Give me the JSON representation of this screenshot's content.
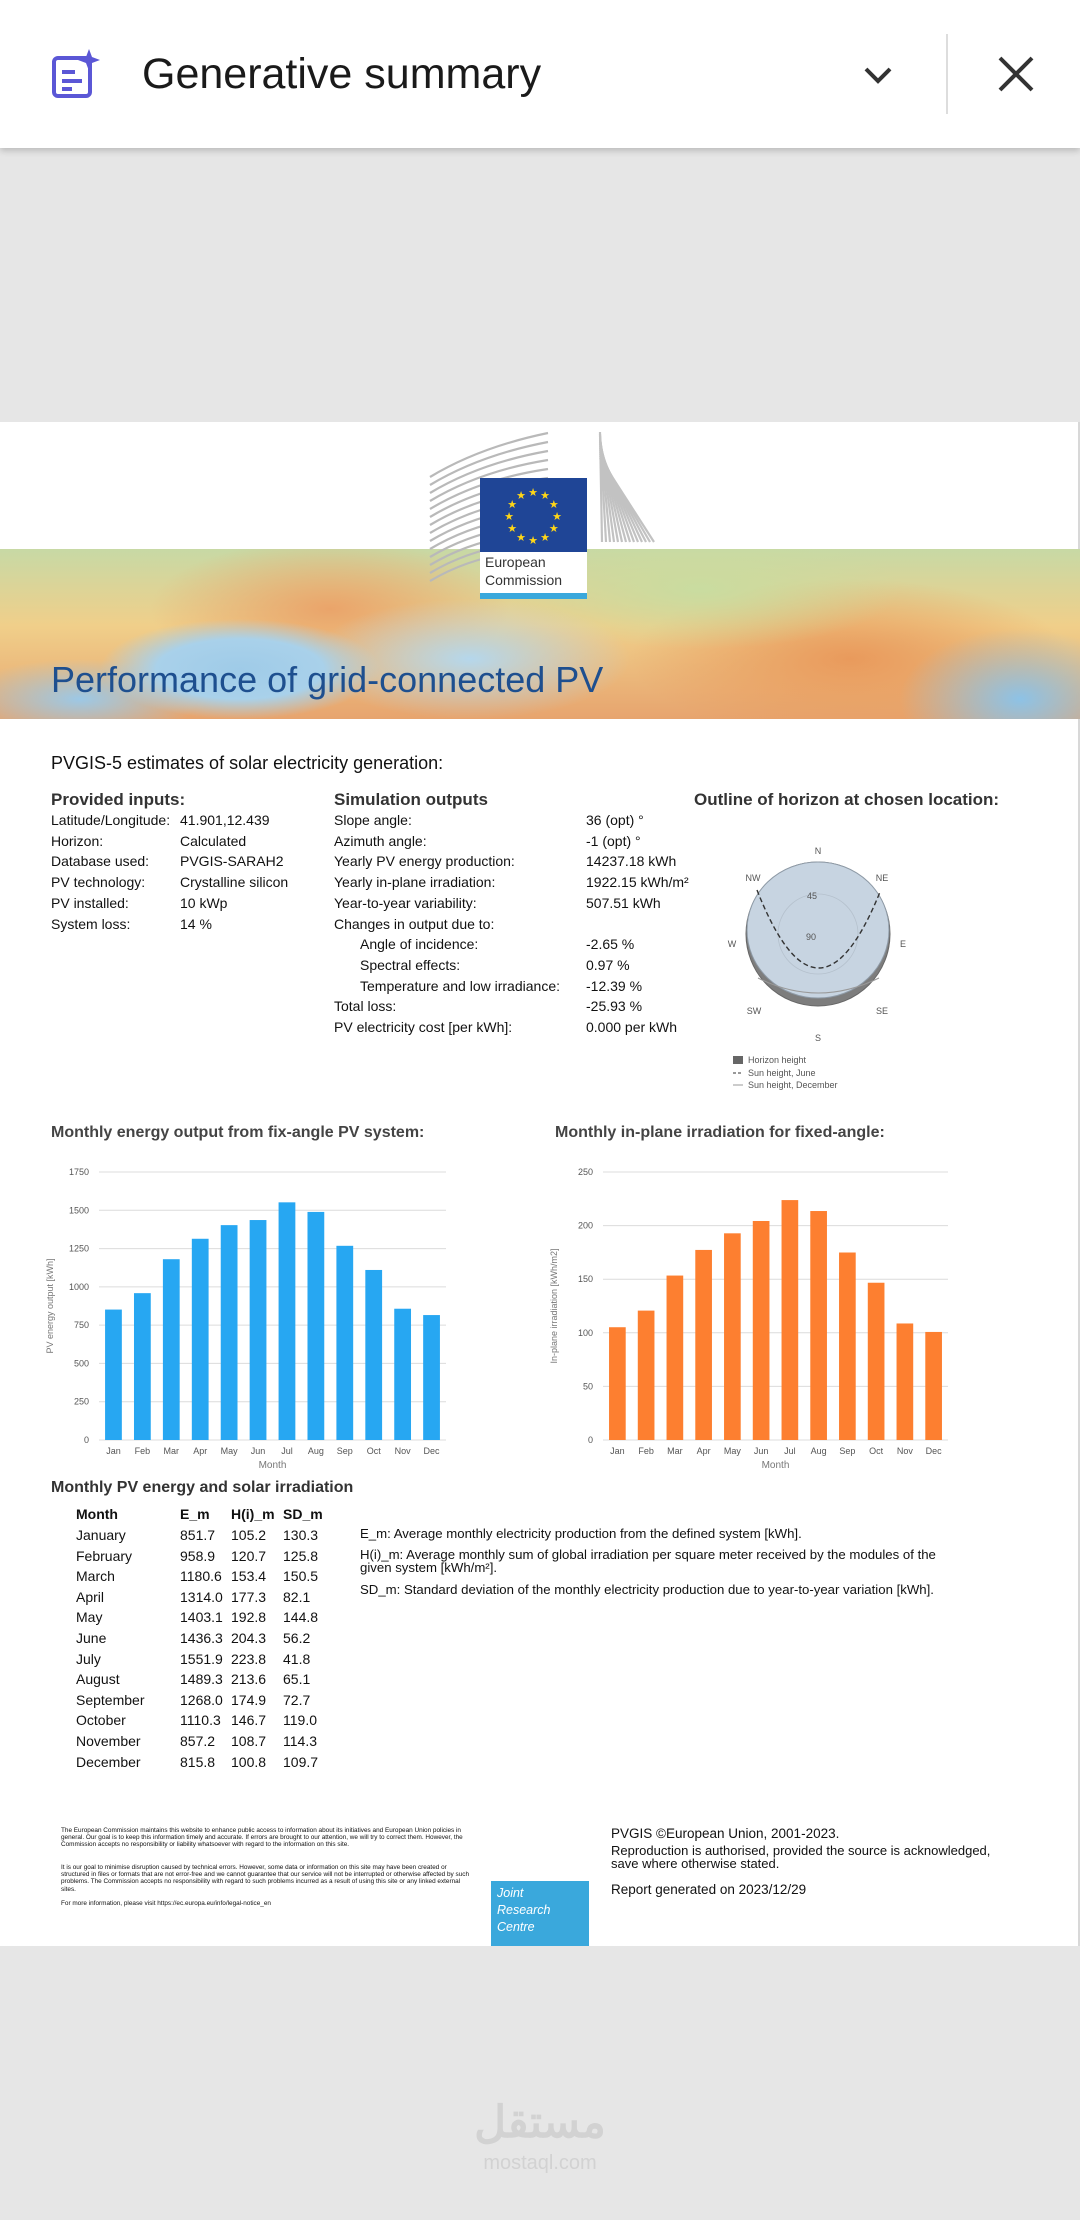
{
  "app_bar": {
    "title": "Generative summary"
  },
  "report": {
    "logo": {
      "line1": "European",
      "line2": "Commission"
    },
    "title": "Performance of grid-connected PV",
    "subtitle": "PVGIS-5 estimates of solar electricity generation:",
    "inputs": {
      "heading": "Provided inputs:",
      "rows": [
        [
          "Latitude/Longitude:",
          "41.901,12.439"
        ],
        [
          "Horizon:",
          "Calculated"
        ],
        [
          "Database used:",
          "PVGIS-SARAH2"
        ],
        [
          "PV technology:",
          "Crystalline silicon"
        ],
        [
          "PV installed:",
          "10 kWp"
        ],
        [
          "System loss:",
          "14 %"
        ]
      ]
    },
    "outputs": {
      "heading": "Simulation outputs",
      "rows": [
        [
          "Slope angle:",
          "36 (opt) °"
        ],
        [
          "Azimuth angle:",
          "-1 (opt) °"
        ],
        [
          "Yearly PV energy production:",
          "14237.18 kWh"
        ],
        [
          "Yearly in-plane irradiation:",
          "1922.15 kWh/m²"
        ],
        [
          "Year-to-year variability:",
          "507.51 kWh"
        ]
      ],
      "changes_heading": "Changes in output due to:",
      "changes_rows": [
        [
          "Angle of incidence:",
          "-2.65 %"
        ],
        [
          "Spectral effects:",
          "0.97 %"
        ],
        [
          "Temperature and low irradiance:",
          "-12.39 %"
        ]
      ],
      "totals_rows": [
        [
          "Total loss:",
          "-25.93 %"
        ],
        [
          "PV electricity cost [per kWh]:",
          "0.000 per kWh"
        ]
      ]
    },
    "horizon": {
      "heading": "Outline of horizon at chosen location:",
      "directions": [
        "N",
        "NE",
        "E",
        "SE",
        "S",
        "SW",
        "W",
        "NW"
      ],
      "elevations": [
        "45",
        "90"
      ],
      "legend": [
        "Horizon height",
        "Sun height, June",
        "Sun height, December"
      ]
    },
    "table": {
      "heading": "Monthly PV energy and solar irradiation",
      "columns": [
        "Month",
        "E_m",
        "H(i)_m",
        "SD_m"
      ],
      "rows": [
        [
          "January",
          "851.7",
          "105.2",
          "130.3"
        ],
        [
          "February",
          "958.9",
          "120.7",
          "125.8"
        ],
        [
          "March",
          "1180.6",
          "153.4",
          "150.5"
        ],
        [
          "April",
          "1314.0",
          "177.3",
          "82.1"
        ],
        [
          "May",
          "1403.1",
          "192.8",
          "144.8"
        ],
        [
          "June",
          "1436.3",
          "204.3",
          "56.2"
        ],
        [
          "July",
          "1551.9",
          "223.8",
          "41.8"
        ],
        [
          "August",
          "1489.3",
          "213.6",
          "65.1"
        ],
        [
          "September",
          "1268.0",
          "174.9",
          "72.7"
        ],
        [
          "October",
          "1110.3",
          "146.7",
          "119.0"
        ],
        [
          "November",
          "857.2",
          "108.7",
          "114.3"
        ],
        [
          "December",
          "815.8",
          "100.8",
          "109.7"
        ]
      ],
      "notes": [
        "E_m: Average monthly electricity production from the defined system [kWh].",
        "H(i)_m: Average monthly sum of global irradiation per square meter received by the modules of the given system [kWh/m²].",
        "SD_m: Standard deviation of the monthly electricity production due to year-to-year variation [kWh]."
      ]
    },
    "footer": {
      "disclaimer": [
        "The European Commission maintains this website to enhance public access to information about its initiatives and European Union policies in general. Our goal is to keep this information timely and accurate. If errors are brought to our attention, we will try to correct them. However, the Commission accepts no responsibility or liability whatsoever with regard to the information on this site.",
        "It is our goal to minimise disruption caused by technical errors. However, some data or information on this site may have been created or structured in files or formats that are not error-free and we cannot guarantee that our service will not be interrupted or otherwise affected by such problems. The Commission accepts no responsibility with regard to such problems incurred as a result of using this site or any linked external sites.",
        "For more information, please visit https://ec.europa.eu/info/legal-notice_en"
      ],
      "jrc": [
        "Joint",
        "Research",
        "Centre"
      ],
      "copyright": "PVGIS ©European Union, 2001-2023.",
      "reproduction": [
        "Reproduction is authorised, provided the source is acknowledged,",
        "save where otherwise stated."
      ],
      "generated": "Report generated on 2023/12/29"
    }
  },
  "chart_data": [
    {
      "type": "bar",
      "title": "Monthly energy output from fix-angle PV system:",
      "x_label": "Month",
      "y_label": "PV energy output [kWh]",
      "categories": [
        "Jan",
        "Feb",
        "Mar",
        "Apr",
        "May",
        "Jun",
        "Jul",
        "Aug",
        "Sep",
        "Oct",
        "Nov",
        "Dec"
      ],
      "values": [
        851.7,
        958.9,
        1180.6,
        1314.0,
        1403.1,
        1436.3,
        1551.9,
        1489.3,
        1268.0,
        1110.3,
        857.2,
        815.8
      ],
      "color": "#27a7f2",
      "ylim": [
        0,
        1750
      ],
      "yticks": [
        0,
        250,
        500,
        750,
        1000,
        1250,
        1500,
        1750
      ],
      "grid": true
    },
    {
      "type": "bar",
      "title": "Monthly in-plane irradiation for fixed-angle:",
      "x_label": "Month",
      "y_label": "In-plane irradiation [kWh/m2]",
      "categories": [
        "Jan",
        "Feb",
        "Mar",
        "Apr",
        "May",
        "Jun",
        "Jul",
        "Aug",
        "Sep",
        "Oct",
        "Nov",
        "Dec"
      ],
      "values": [
        105.2,
        120.7,
        153.4,
        177.3,
        192.8,
        204.3,
        223.8,
        213.6,
        174.9,
        146.7,
        108.7,
        100.8
      ],
      "color": "#fd7f30",
      "ylim": [
        0,
        250
      ],
      "yticks": [
        0,
        50,
        100,
        150,
        200,
        250
      ],
      "grid": true
    }
  ],
  "watermark": {
    "arabic": "مستقل",
    "latin": "mostaql.com"
  }
}
